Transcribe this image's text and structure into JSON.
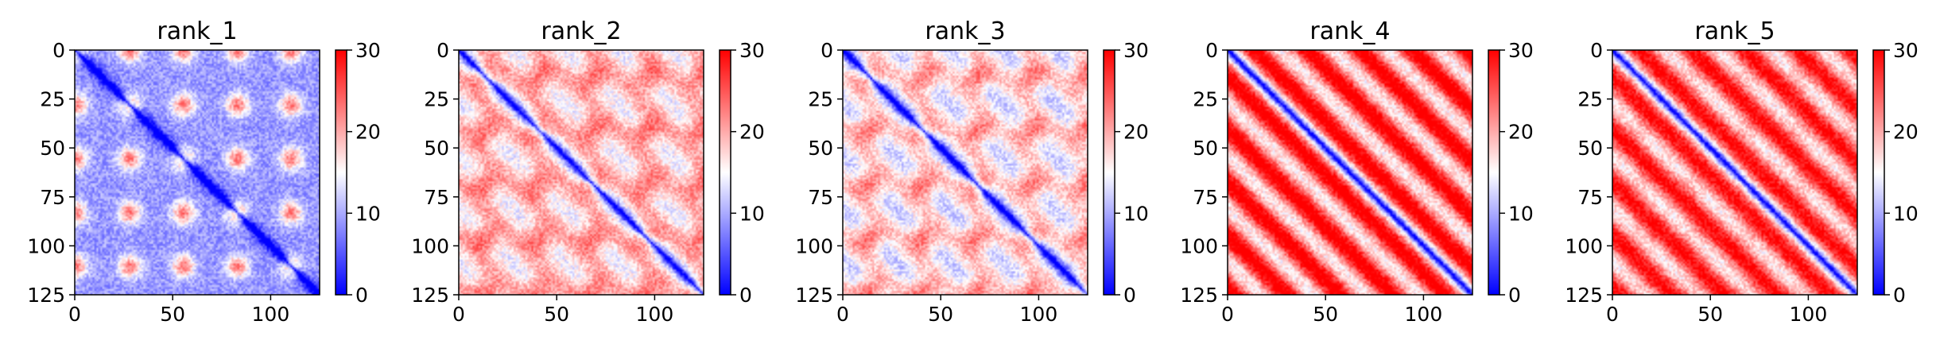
{
  "colors": {
    "low": "#0000ff",
    "mid": "#ffffff",
    "high": "#ff0000",
    "axis": "#000000"
  },
  "chart_data": [
    {
      "type": "heatmap",
      "title": "rank_1",
      "xlabel": "",
      "ylabel": "",
      "size": 125,
      "xlim": [
        0,
        125
      ],
      "ylim": [
        125,
        0
      ],
      "x_ticks": [
        0,
        50,
        100
      ],
      "y_ticks": [
        0,
        25,
        50,
        75,
        100,
        125
      ],
      "colorbar": {
        "min": 0,
        "max": 30,
        "ticks": [
          0,
          10,
          20,
          30
        ],
        "colormap": "bwr"
      },
      "pattern": {
        "period": 27.5,
        "phase": 0,
        "background": 9,
        "bump": 14,
        "bump_sigma": 4,
        "band": 0,
        "band_period": 16
      }
    },
    {
      "type": "heatmap",
      "title": "rank_2",
      "xlabel": "",
      "ylabel": "",
      "size": 125,
      "xlim": [
        0,
        125
      ],
      "ylim": [
        125,
        0
      ],
      "x_ticks": [
        0,
        50,
        100
      ],
      "y_ticks": [
        0,
        25,
        50,
        75,
        100,
        125
      ],
      "colorbar": {
        "min": 0,
        "max": 30,
        "ticks": [
          0,
          10,
          20,
          30
        ],
        "colormap": "bwr"
      },
      "pattern": {
        "period": 27.5,
        "phase": 13,
        "background": 17,
        "bump": 9,
        "bump_sigma": 5,
        "band": 3,
        "band_period": 27
      }
    },
    {
      "type": "heatmap",
      "title": "rank_3",
      "xlabel": "",
      "ylabel": "",
      "size": 125,
      "xlim": [
        0,
        125
      ],
      "ylim": [
        125,
        0
      ],
      "x_ticks": [
        0,
        50,
        100
      ],
      "y_ticks": [
        0,
        25,
        50,
        75,
        100,
        125
      ],
      "colorbar": {
        "min": 0,
        "max": 30,
        "ticks": [
          0,
          10,
          20,
          30
        ],
        "colormap": "bwr"
      },
      "pattern": {
        "period": 27.5,
        "phase": 13,
        "background": 15,
        "bump": 11,
        "bump_sigma": 5,
        "band": 3,
        "band_period": 27
      }
    },
    {
      "type": "heatmap",
      "title": "rank_4",
      "xlabel": "",
      "ylabel": "",
      "size": 125,
      "xlim": [
        0,
        125
      ],
      "ylim": [
        125,
        0
      ],
      "x_ticks": [
        0,
        50,
        100
      ],
      "y_ticks": [
        0,
        25,
        50,
        75,
        100,
        125
      ],
      "colorbar": {
        "min": 0,
        "max": 30,
        "ticks": [
          0,
          10,
          20,
          30
        ],
        "colormap": "bwr"
      },
      "pattern": {
        "period": 27.5,
        "phase": 13,
        "background": 24,
        "bump": 0,
        "bump_sigma": 5,
        "band": 8,
        "band_period": 27
      }
    },
    {
      "type": "heatmap",
      "title": "rank_5",
      "xlabel": "",
      "ylabel": "",
      "size": 125,
      "xlim": [
        0,
        125
      ],
      "ylim": [
        125,
        0
      ],
      "x_ticks": [
        0,
        50,
        100
      ],
      "y_ticks": [
        0,
        25,
        50,
        75,
        100,
        125
      ],
      "colorbar": {
        "min": 0,
        "max": 30,
        "ticks": [
          0,
          10,
          20,
          30
        ],
        "colormap": "bwr"
      },
      "pattern": {
        "period": 27.5,
        "phase": 13,
        "background": 23,
        "bump": 2,
        "bump_sigma": 5,
        "band": 7,
        "band_period": 27
      }
    }
  ]
}
